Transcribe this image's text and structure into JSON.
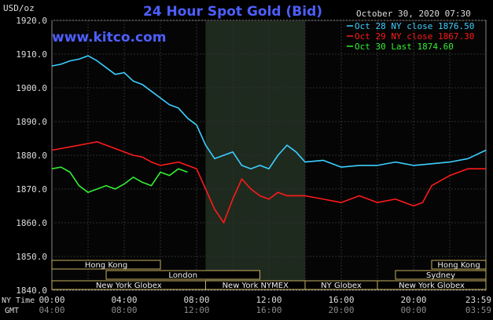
{
  "header": {
    "title": "24 Hour Spot Gold (Bid)",
    "unit": "USD/oz",
    "timestamp": "October 30, 2020 07:30",
    "watermark": "www.kitco.com"
  },
  "legend": [
    {
      "label": "Oct 28 NY close 1876.50",
      "color": "#3ccfff"
    },
    {
      "label": "Oct 29 NY close 1867.30",
      "color": "#ff1a1a"
    },
    {
      "label": "Oct 30 Last 1874.60",
      "color": "#33ee33"
    }
  ],
  "x_axis": {
    "row1_label": "NY Time",
    "row2_label": "GMT",
    "ny_ticks": [
      "00:00",
      "04:00",
      "08:00",
      "12:00",
      "16:00",
      "20:00",
      "23:59"
    ],
    "gmt_ticks": [
      "04:00",
      "08:00",
      "12:00",
      "16:00",
      "20:00",
      "00:00",
      "03:59"
    ]
  },
  "sessions": [
    {
      "label": "Hong Kong",
      "start": 0.0,
      "end": 6.0,
      "row": 0
    },
    {
      "label": "Hong Kong",
      "start": 21.0,
      "end": 24.0,
      "row": 0
    },
    {
      "label": "London",
      "start": 3.0,
      "end": 11.5,
      "row": 1
    },
    {
      "label": "Sydney",
      "start": 19.0,
      "end": 24.0,
      "row": 1
    },
    {
      "label": "New York Globex",
      "start": 0.0,
      "end": 8.5,
      "row": 2
    },
    {
      "label": "New York NYMEX",
      "start": 8.5,
      "end": 14.0,
      "row": 2
    },
    {
      "label": "NY Globex",
      "start": 14.0,
      "end": 18.0,
      "row": 2
    },
    {
      "label": "New York Globex",
      "start": 18.0,
      "end": 24.0,
      "row": 2
    }
  ],
  "chart_data": {
    "type": "line",
    "title": "24 Hour Spot Gold (Bid)",
    "ylabel": "USD/oz",
    "ylim": [
      1840.0,
      1920.0
    ],
    "yticks": [
      "1840.0",
      "1850.0",
      "1860.0",
      "1870.0",
      "1880.0",
      "1890.0",
      "1900.0",
      "1910.0",
      "1920.0"
    ],
    "xlim": [
      0,
      24
    ],
    "highlight_band_hours": [
      8.5,
      14.0
    ],
    "grid": true,
    "legend_position": "top-right",
    "series": [
      {
        "name": "Oct 28 NY close 1876.50",
        "color": "#3ccfff",
        "x": [
          0,
          0.5,
          1,
          1.5,
          2,
          2.5,
          3,
          3.5,
          4,
          4.5,
          5,
          5.5,
          6,
          6.5,
          7,
          7.5,
          8,
          8.5,
          9,
          9.5,
          10,
          10.5,
          11,
          11.5,
          12,
          12.5,
          13,
          13.5,
          14,
          15,
          16,
          17,
          18,
          19,
          20,
          21,
          22,
          23,
          24
        ],
        "y": [
          1906.5,
          1907,
          1908,
          1908.5,
          1909.5,
          1908,
          1906,
          1904,
          1904.5,
          1902,
          1901,
          1899,
          1897,
          1895,
          1894,
          1891,
          1889,
          1883,
          1879,
          1880,
          1881,
          1877,
          1876,
          1877,
          1876,
          1880,
          1883,
          1881,
          1878,
          1878.5,
          1876.5,
          1877,
          1877,
          1878,
          1877,
          1877.5,
          1878,
          1879,
          1881.5
        ]
      },
      {
        "name": "Oct 29 NY close 1867.30",
        "color": "#ff1a1a",
        "x": [
          0,
          0.5,
          1,
          1.5,
          2,
          2.5,
          3,
          3.5,
          4,
          4.5,
          5,
          5.5,
          6,
          6.5,
          7,
          7.5,
          8,
          8.5,
          9,
          9.5,
          10,
          10.5,
          11,
          11.5,
          12,
          12.5,
          13,
          13.5,
          14,
          15,
          16,
          17,
          18,
          19,
          19.5,
          20,
          20.5,
          21,
          22,
          23,
          24
        ],
        "y": [
          1881.5,
          1882,
          1882.5,
          1883,
          1883.5,
          1884,
          1883,
          1882,
          1881,
          1880,
          1879.5,
          1878,
          1877,
          1877.5,
          1878,
          1877,
          1876,
          1870,
          1864,
          1860,
          1867,
          1873,
          1870,
          1868,
          1867,
          1869,
          1868,
          1868,
          1868,
          1867,
          1866,
          1868,
          1866,
          1867,
          1866,
          1865,
          1866,
          1871,
          1874,
          1876,
          1876
        ]
      },
      {
        "name": "Oct 30 Last 1874.60",
        "color": "#33ee33",
        "x": [
          0,
          0.5,
          1,
          1.5,
          2,
          2.5,
          3,
          3.5,
          4,
          4.5,
          5,
          5.5,
          6,
          6.5,
          7,
          7.5
        ],
        "y": [
          1876,
          1876.5,
          1875,
          1871,
          1869,
          1870,
          1871,
          1870,
          1871.5,
          1873.5,
          1872,
          1871,
          1875,
          1874,
          1876,
          1875
        ]
      }
    ]
  }
}
